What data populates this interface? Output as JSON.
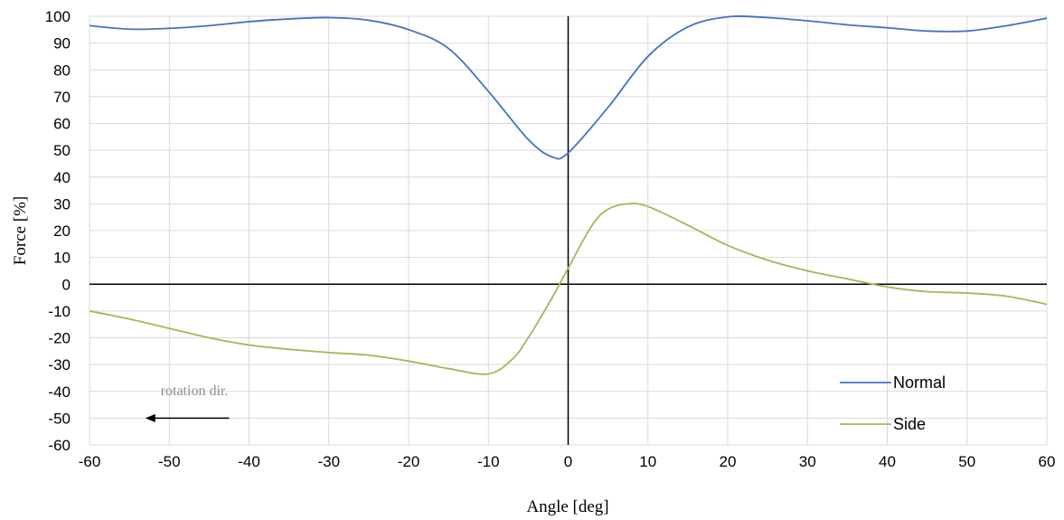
{
  "chart_data": {
    "type": "line",
    "xlabel": "Angle [deg]",
    "ylabel": "Force [%]",
    "xlim": [
      -60,
      60
    ],
    "ylim": [
      -60,
      100
    ],
    "xticks": [
      -60,
      -50,
      -40,
      -30,
      -20,
      -10,
      0,
      10,
      20,
      30,
      40,
      50,
      60
    ],
    "yticks": [
      100,
      90,
      80,
      70,
      60,
      50,
      40,
      30,
      20,
      10,
      0,
      -10,
      -20,
      -30,
      -40,
      -50,
      -60
    ],
    "grid": true,
    "legend_position": "bottom-right",
    "series": [
      {
        "name": "Normal",
        "color": "#4472C4",
        "x": [
          -60,
          -55,
          -50,
          -45,
          -40,
          -35,
          -30,
          -25,
          -20,
          -15,
          -10,
          -5,
          -2,
          0,
          5,
          10,
          15,
          20,
          25,
          30,
          35,
          40,
          45,
          50,
          55,
          60
        ],
        "y": [
          96.5,
          95.2,
          95.5,
          96.5,
          98,
          99,
          99.5,
          98.5,
          95,
          88,
          72,
          54,
          47.5,
          49,
          66,
          85,
          96,
          99.8,
          99.5,
          98.3,
          96.8,
          95.7,
          94.5,
          94.5,
          96.5,
          99.3
        ]
      },
      {
        "name": "Side",
        "color": "#9BBB59",
        "x": [
          -60,
          -55,
          -50,
          -45,
          -40,
          -35,
          -30,
          -25,
          -20,
          -15,
          -10,
          -7,
          -5,
          -2,
          0,
          3,
          5,
          7.5,
          10,
          15,
          20,
          25,
          30,
          35,
          40,
          45,
          50,
          55,
          60
        ],
        "y": [
          -10,
          -13,
          -16.5,
          -20,
          -22.7,
          -24.3,
          -25.5,
          -26.5,
          -28.7,
          -31.5,
          -33.5,
          -28,
          -20,
          -5,
          6,
          22,
          28,
          30,
          29,
          22,
          14.5,
          9,
          5,
          2,
          -1,
          -2.8,
          -3.3,
          -4.5,
          -7.5
        ]
      }
    ],
    "annotation": {
      "text": "rotation dir.",
      "arrow_from": [
        -42.5,
        -50
      ],
      "arrow_to": [
        -53,
        -50
      ]
    }
  }
}
